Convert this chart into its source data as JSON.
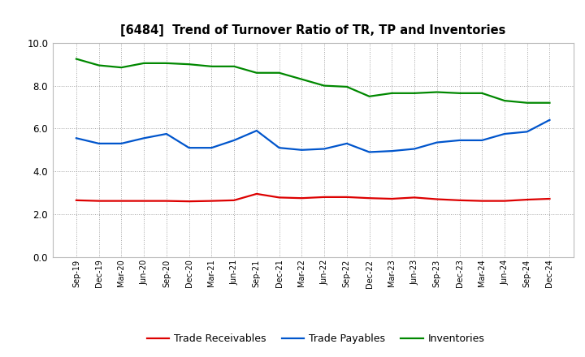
{
  "title": "[6484]  Trend of Turnover Ratio of TR, TP and Inventories",
  "xlabels": [
    "Sep-19",
    "Dec-19",
    "Mar-20",
    "Jun-20",
    "Sep-20",
    "Dec-20",
    "Mar-21",
    "Jun-21",
    "Sep-21",
    "Dec-21",
    "Mar-22",
    "Jun-22",
    "Sep-22",
    "Dec-22",
    "Mar-23",
    "Jun-23",
    "Sep-23",
    "Dec-23",
    "Mar-24",
    "Jun-24",
    "Sep-24",
    "Dec-24"
  ],
  "trade_receivables": [
    2.65,
    2.62,
    2.62,
    2.62,
    2.62,
    2.6,
    2.62,
    2.65,
    2.95,
    2.78,
    2.75,
    2.8,
    2.8,
    2.75,
    2.72,
    2.78,
    2.7,
    2.65,
    2.62,
    2.62,
    2.68,
    2.72
  ],
  "trade_payables": [
    5.55,
    5.3,
    5.3,
    5.55,
    5.75,
    5.1,
    5.1,
    5.45,
    5.9,
    5.1,
    5.0,
    5.05,
    5.3,
    4.9,
    4.95,
    5.05,
    5.35,
    5.45,
    5.45,
    5.75,
    5.85,
    6.4
  ],
  "inventories": [
    9.25,
    8.95,
    8.85,
    9.05,
    9.05,
    9.0,
    8.9,
    8.9,
    8.6,
    8.6,
    8.3,
    8.0,
    7.95,
    7.5,
    7.65,
    7.65,
    7.7,
    7.65,
    7.65,
    7.3,
    7.2,
    7.2
  ],
  "tr_color": "#dd0000",
  "tp_color": "#0055cc",
  "inv_color": "#008800",
  "ylim": [
    0.0,
    10.0
  ],
  "yticks": [
    0.0,
    2.0,
    4.0,
    6.0,
    8.0,
    10.0
  ],
  "legend_labels": [
    "Trade Receivables",
    "Trade Payables",
    "Inventories"
  ],
  "background_color": "#ffffff",
  "grid_color": "#999999"
}
